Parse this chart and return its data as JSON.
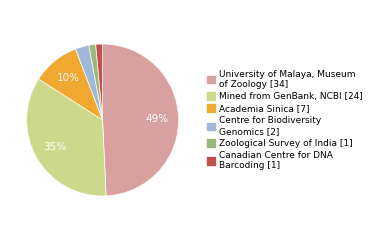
{
  "labels": [
    "University of Malaya, Museum\nof Zoology [34]",
    "Mined from GenBank, NCBI [24]",
    "Academia Sinica [7]",
    "Centre for Biodiversity\nGenomics [2]",
    "Zoological Survey of India [1]",
    "Canadian Centre for DNA\nBarcoding [1]"
  ],
  "values": [
    34,
    24,
    7,
    2,
    1,
    1
  ],
  "colors": [
    "#d9a0a0",
    "#cdd98a",
    "#f0a830",
    "#a0b8d8",
    "#9ab87a",
    "#c0504d"
  ],
  "startangle": 90,
  "pctdistance": 0.72,
  "background_color": "#ffffff",
  "text_color": "#ffffff",
  "fontsize": 7.5,
  "legend_fontsize": 6.5
}
